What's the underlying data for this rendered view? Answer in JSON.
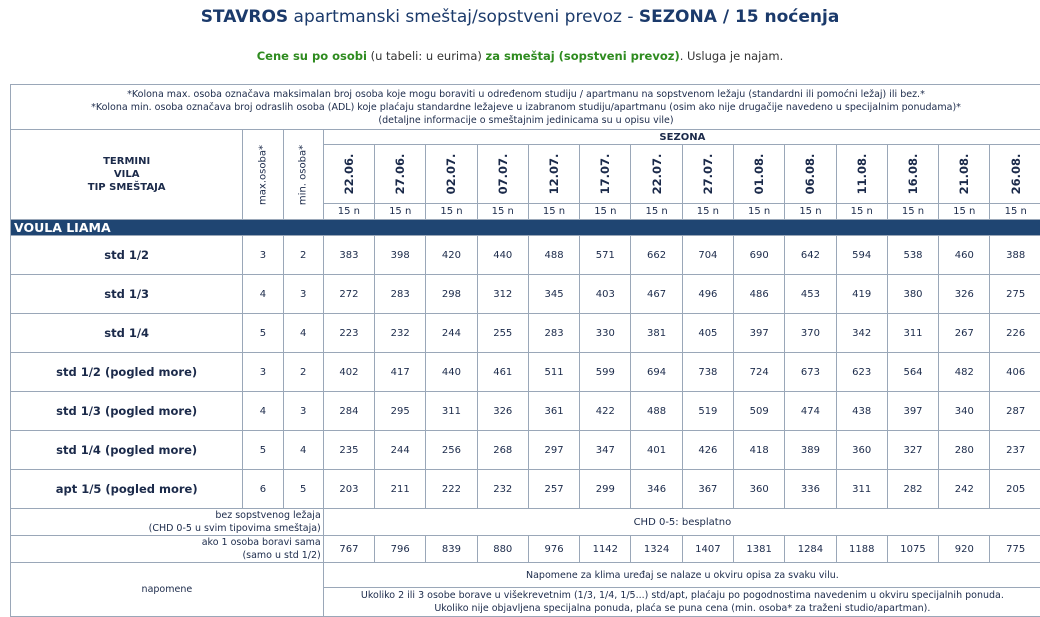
{
  "header": {
    "title_bold_1": "STAVROS",
    "title_mid": " apartmanski smeštaj/sopstveni prevoz - ",
    "title_bold_2": "SEZONA / 15 noćenja",
    "sub_green_1": "Cene su po osobi",
    "sub_mid": " (u tabeli: u eurima) ",
    "sub_green_2": "za smeštaj (sopstveni prevoz)",
    "sub_end": ". Usluga je najam."
  },
  "notes": {
    "line1": "*Kolona max. osoba označava maksimalan broj osoba koje mogu boraviti u određenom studiju / apartmanu na sopstvenom ležaju (standardni ili pomoćni ležaj) ili bez.*",
    "line2": "*Kolona min. osoba označava broj odraslih osoba (ADL) koje plaćaju standardne ležajeve u izabranom studiju/apartmanu (osim ako nije drugačije navedeno u specijalnim ponudama)*",
    "line3": "(detaljne informacije o smeštajnim jedinicama su u opisu vile)"
  },
  "table_header": {
    "termini": "TERMINI",
    "vila": "VILA",
    "tip": "TIP SMEŠTAJA",
    "max": "max.osoba*",
    "min": "min. osoba*",
    "sezona": "SEZONA",
    "dates": [
      "22.06.",
      "27.06.",
      "02.07.",
      "07.07.",
      "12.07.",
      "17.07.",
      "22.07.",
      "27.07.",
      "01.08.",
      "06.08.",
      "11.08.",
      "16.08.",
      "21.08.",
      "26.08."
    ],
    "nights": [
      "15 n",
      "15 n",
      "15 n",
      "15 n",
      "15 n",
      "15 n",
      "15 n",
      "15 n",
      "15 n",
      "15 n",
      "15 n",
      "15 n",
      "15 n",
      "15 n"
    ]
  },
  "section_name": "VOULA LIAMA",
  "rows": [
    {
      "type": "std 1/2",
      "max": "3",
      "min": "2",
      "prices": [
        "383",
        "398",
        "420",
        "440",
        "488",
        "571",
        "662",
        "704",
        "690",
        "642",
        "594",
        "538",
        "460",
        "388"
      ]
    },
    {
      "type": "std 1/3",
      "max": "4",
      "min": "3",
      "prices": [
        "272",
        "283",
        "298",
        "312",
        "345",
        "403",
        "467",
        "496",
        "486",
        "453",
        "419",
        "380",
        "326",
        "275"
      ]
    },
    {
      "type": "std 1/4",
      "max": "5",
      "min": "4",
      "prices": [
        "223",
        "232",
        "244",
        "255",
        "283",
        "330",
        "381",
        "405",
        "397",
        "370",
        "342",
        "311",
        "267",
        "226"
      ]
    },
    {
      "type": "std 1/2 (pogled more)",
      "max": "3",
      "min": "2",
      "prices": [
        "402",
        "417",
        "440",
        "461",
        "511",
        "599",
        "694",
        "738",
        "724",
        "673",
        "623",
        "564",
        "482",
        "406"
      ]
    },
    {
      "type": "std 1/3 (pogled more)",
      "max": "4",
      "min": "3",
      "prices": [
        "284",
        "295",
        "311",
        "326",
        "361",
        "422",
        "488",
        "519",
        "509",
        "474",
        "438",
        "397",
        "340",
        "287"
      ]
    },
    {
      "type": "std 1/4 (pogled more)",
      "max": "5",
      "min": "4",
      "prices": [
        "235",
        "244",
        "256",
        "268",
        "297",
        "347",
        "401",
        "426",
        "418",
        "389",
        "360",
        "327",
        "280",
        "237"
      ]
    },
    {
      "type": "apt 1/5 (pogled more)",
      "max": "6",
      "min": "5",
      "prices": [
        "203",
        "211",
        "222",
        "232",
        "257",
        "299",
        "346",
        "367",
        "360",
        "336",
        "311",
        "282",
        "242",
        "205"
      ]
    }
  ],
  "footer": {
    "chd_label_1": "bez sopstvenog ležaja",
    "chd_label_2": "(CHD 0-5 u svim tipovima smeštaja)",
    "chd_value": "CHD 0-5: besplatno",
    "single_label_1": "ako 1 osoba boravi sama",
    "single_label_2": "(samo u std 1/2)",
    "single_prices": [
      "767",
      "796",
      "839",
      "880",
      "976",
      "1142",
      "1324",
      "1407",
      "1381",
      "1284",
      "1188",
      "1075",
      "920",
      "775"
    ],
    "napomene_label": "napomene",
    "napomene_1": "Napomene za klima uređaj se nalaze u okviru opisa za svaku vilu.",
    "napomene_2a": "Ukoliko 2 ili 3 osobe borave u višekrevetnim (1/3, 1/4, 1/5...) std/apt, plaćaju po pogodnostima navedenim u okviru specijalnih ponuda.",
    "napomene_2b": "Ukoliko nije objavljena specijalna ponuda, plaća se puna cena (min. osoba* za traženi studio/apartman)."
  }
}
